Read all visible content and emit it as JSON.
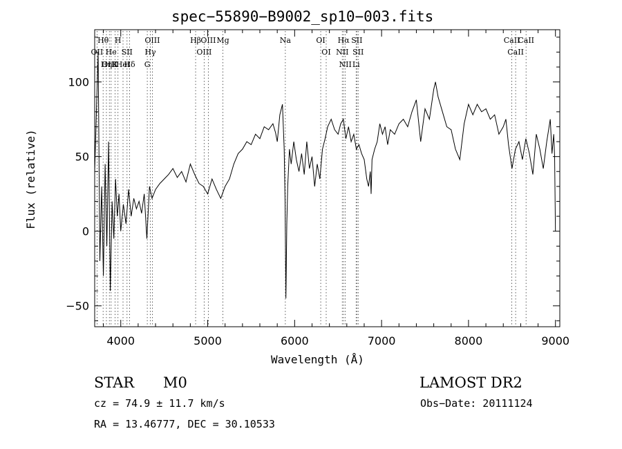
{
  "chart_data": {
    "type": "line",
    "title": "spec−55890−B9002_sp10−003.fits",
    "xlabel": "Wavelength (Å)",
    "ylabel": "Flux (relative)",
    "xlim": [
      3700,
      9050
    ],
    "ylim": [
      -64,
      135
    ],
    "xticks": [
      4000,
      5000,
      6000,
      7000,
      8000,
      9000
    ],
    "yticks": [
      -50,
      0,
      50,
      100
    ],
    "grid": false,
    "series": [
      {
        "color": "#000000",
        "x": [
          3700,
          3720,
          3740,
          3760,
          3780,
          3800,
          3820,
          3840,
          3860,
          3880,
          3900,
          3920,
          3940,
          3960,
          3980,
          4000,
          4030,
          4060,
          4090,
          4120,
          4150,
          4180,
          4210,
          4240,
          4270,
          4300,
          4330,
          4360,
          4400,
          4450,
          4500,
          4550,
          4600,
          4650,
          4700,
          4750,
          4800,
          4850,
          4900,
          4950,
          5000,
          5050,
          5100,
          5150,
          5200,
          5250,
          5300,
          5350,
          5400,
          5450,
          5500,
          5550,
          5600,
          5650,
          5700,
          5750,
          5780,
          5800,
          5830,
          5860,
          5880,
          5890,
          5900,
          5910,
          5920,
          5940,
          5960,
          5990,
          6020,
          6050,
          6080,
          6110,
          6140,
          6170,
          6200,
          6230,
          6260,
          6290,
          6320,
          6350,
          6380,
          6420,
          6460,
          6500,
          6530,
          6560,
          6590,
          6620,
          6650,
          6680,
          6710,
          6740,
          6770,
          6800,
          6830,
          6850,
          6870,
          6880,
          6890,
          6920,
          6950,
          6980,
          7010,
          7040,
          7070,
          7100,
          7150,
          7200,
          7250,
          7300,
          7350,
          7400,
          7450,
          7500,
          7550,
          7600,
          7620,
          7650,
          7700,
          7750,
          7800,
          7850,
          7900,
          7950,
          8000,
          8050,
          8100,
          8150,
          8200,
          8250,
          8300,
          8350,
          8400,
          8430,
          8460,
          8500,
          8540,
          8580,
          8620,
          8660,
          8700,
          8740,
          8780,
          8820,
          8860,
          8900,
          8940,
          8960,
          8980,
          8990,
          9000
        ],
        "y": [
          40,
          80,
          120,
          -20,
          30,
          -30,
          45,
          -10,
          60,
          -40,
          20,
          -5,
          35,
          10,
          25,
          0,
          18,
          5,
          28,
          10,
          22,
          15,
          20,
          12,
          25,
          -5,
          30,
          22,
          28,
          32,
          35,
          38,
          42,
          36,
          40,
          33,
          45,
          38,
          32,
          30,
          25,
          35,
          28,
          22,
          30,
          35,
          45,
          52,
          55,
          60,
          58,
          65,
          62,
          70,
          68,
          72,
          66,
          60,
          78,
          85,
          55,
          20,
          -45,
          5,
          30,
          55,
          45,
          60,
          48,
          40,
          52,
          38,
          60,
          42,
          50,
          30,
          45,
          35,
          55,
          62,
          70,
          75,
          68,
          65,
          72,
          75,
          62,
          70,
          60,
          65,
          55,
          58,
          52,
          48,
          35,
          30,
          40,
          25,
          48,
          55,
          60,
          72,
          65,
          70,
          58,
          68,
          65,
          72,
          75,
          70,
          80,
          88,
          60,
          82,
          75,
          95,
          100,
          90,
          80,
          70,
          68,
          55,
          48,
          72,
          85,
          78,
          85,
          80,
          82,
          75,
          78,
          65,
          70,
          75,
          58,
          42,
          55,
          60,
          48,
          62,
          52,
          38,
          65,
          55,
          42,
          60,
          75,
          52,
          65,
          50,
          0
        ]
      }
    ],
    "lines": [
      {
        "label": "Hθ",
        "x": 3797
      },
      {
        "label": "OII",
        "x": 3727
      },
      {
        "label": "OIII",
        "x": 3869
      },
      {
        "label": "He",
        "x": 3889
      },
      {
        "label": "Hη",
        "x": 3835
      },
      {
        "label": "K",
        "x": 3934
      },
      {
        "label": "H",
        "x": 3968
      },
      {
        "label": "HeI",
        "x": 4026
      },
      {
        "label": "SII",
        "x": 4072
      },
      {
        "label": "Hδ",
        "x": 4102
      },
      {
        "label": "OIII",
        "x": 4363
      },
      {
        "label": "Hγ",
        "x": 4340
      },
      {
        "label": "G",
        "x": 4305
      },
      {
        "label": "Hβ",
        "x": 4861
      },
      {
        "label": "OIII",
        "x": 4959
      },
      {
        "label": "OIII",
        "x": 5007
      },
      {
        "label": "Mg",
        "x": 5175
      },
      {
        "label": "Na",
        "x": 5893
      },
      {
        "label": "OI",
        "x": 6300
      },
      {
        "label": "OI",
        "x": 6363
      },
      {
        "label": "Hα",
        "x": 6563
      },
      {
        "label": "NII",
        "x": 6548
      },
      {
        "label": "NII",
        "x": 6583
      },
      {
        "label": "SII",
        "x": 6716
      },
      {
        "label": "SII",
        "x": 6731
      },
      {
        "label": "Li",
        "x": 6707
      },
      {
        "label": "CaII",
        "x": 8498
      },
      {
        "label": "CaII",
        "x": 8542
      },
      {
        "label": "CaII",
        "x": 8662
      }
    ]
  },
  "footer": {
    "class": "STAR",
    "subclass": "M0",
    "survey": "LAMOST DR2",
    "cz": "cz = 74.9 ± 11.7 km/s",
    "obs_date": "Obs−Date: 20111124",
    "radec": "RA =  13.46777, DEC =  30.10533"
  }
}
